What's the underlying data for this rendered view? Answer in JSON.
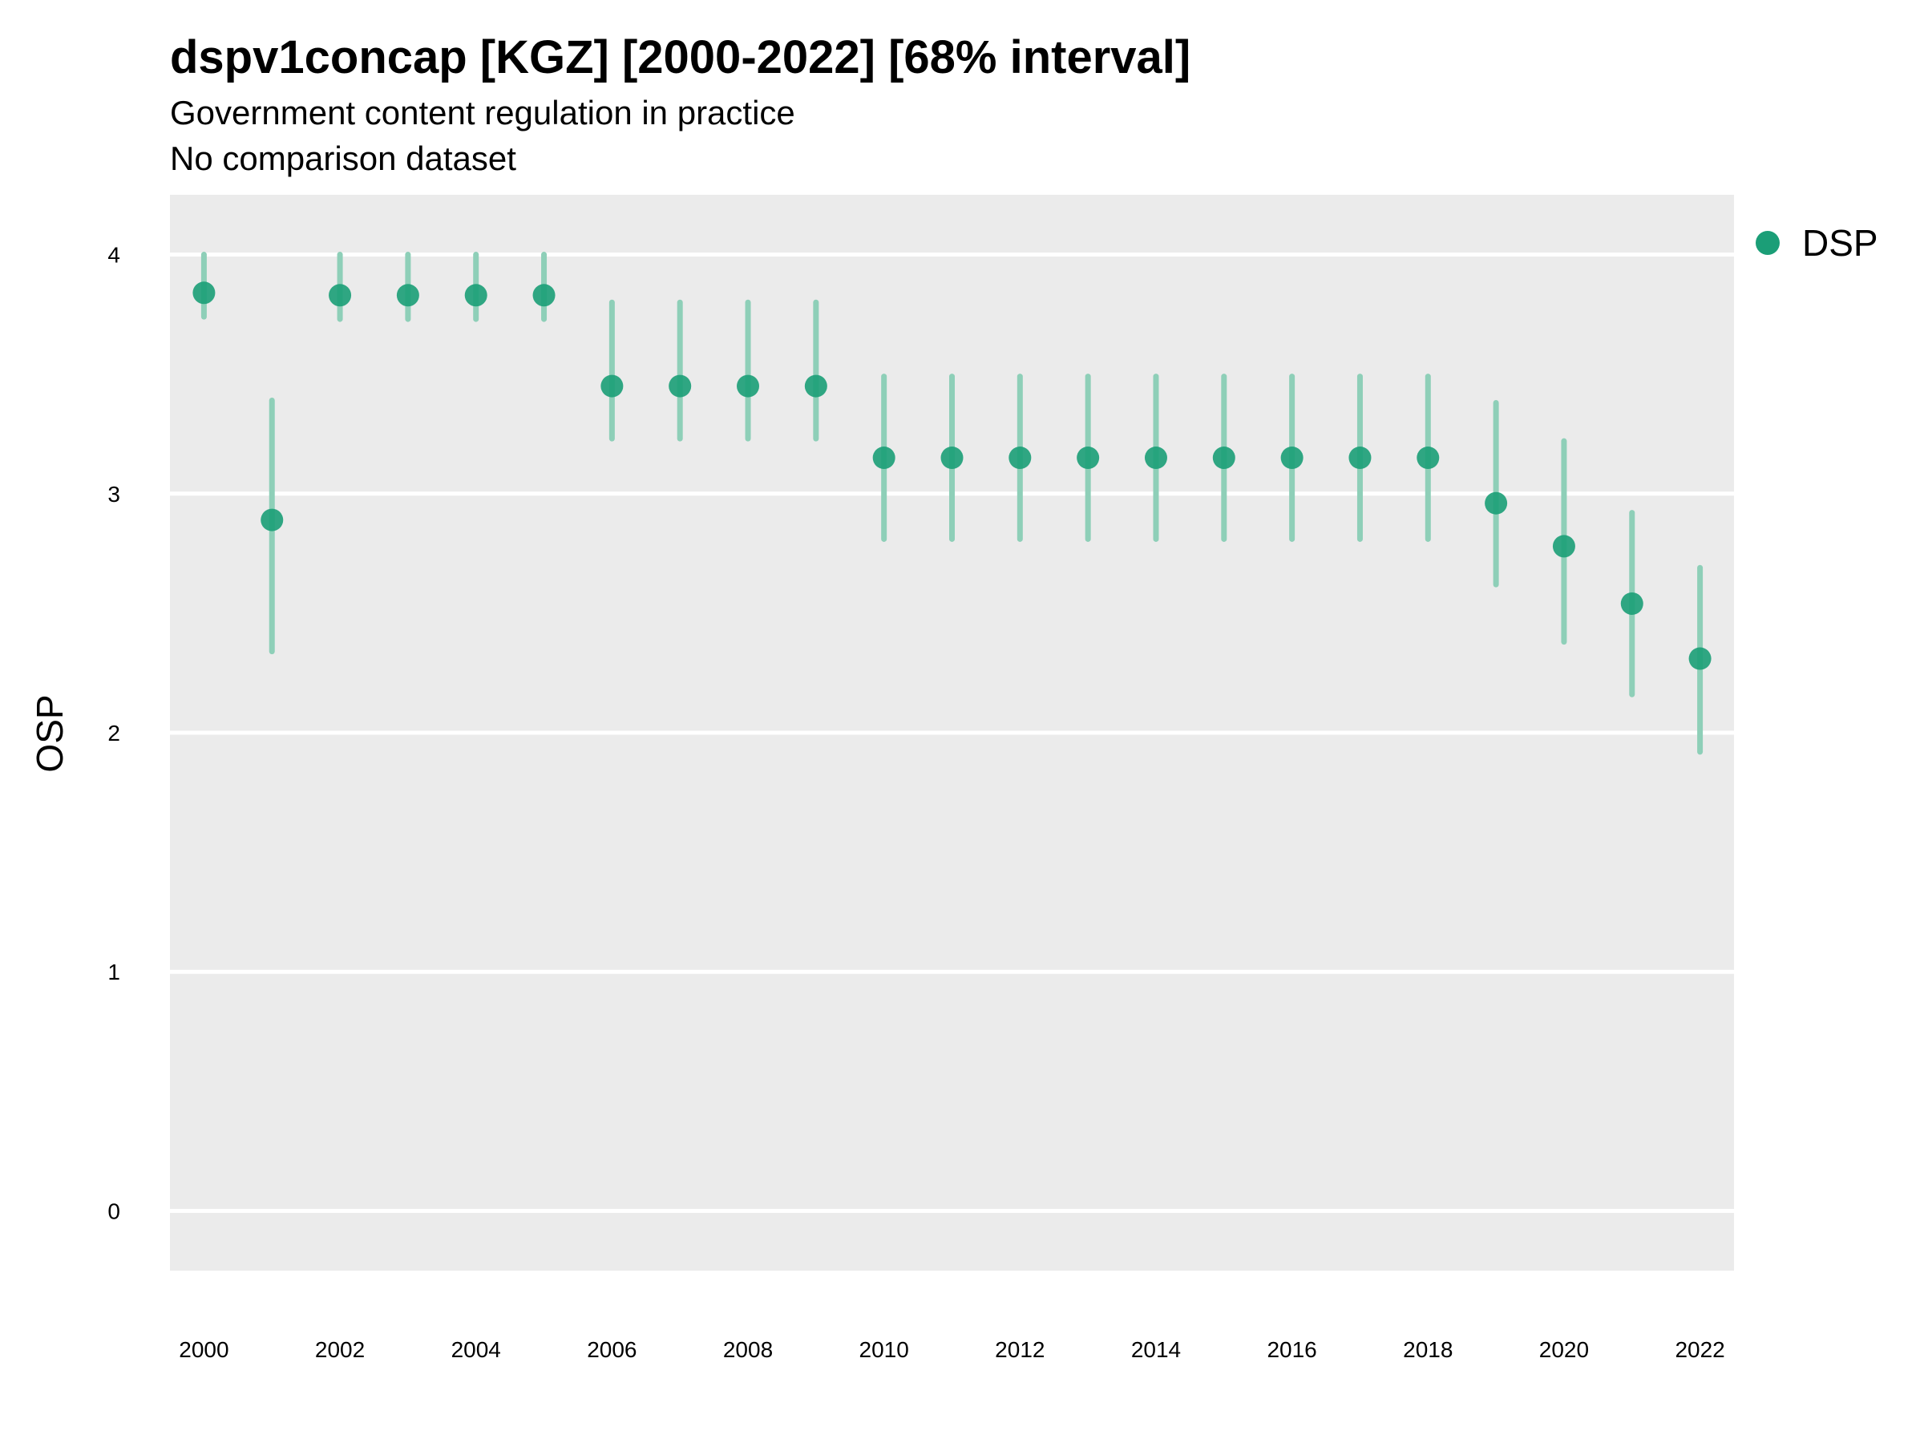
{
  "title": "dspv1concap [KGZ] [2000-2022] [68% interval]",
  "subtitle": "Government content regulation in practice",
  "subtitle2": "No comparison dataset",
  "colors": {
    "panel": "#ebebeb",
    "grid": "#ffffff",
    "point": "#1b9e77",
    "interval": "#8ecfb8"
  },
  "legend": {
    "label": "DSP",
    "position": "right"
  },
  "chart_data": {
    "type": "scatter",
    "title": "dspv1concap [KGZ] [2000-2022] [68% interval]",
    "ylabel": "OSP",
    "xlabel": "",
    "ylim": [
      -0.25,
      4.25
    ],
    "xlim": [
      1999.5,
      2022.5
    ],
    "grid": true,
    "yticks": [
      0,
      1,
      2,
      3,
      4
    ],
    "xticks": [
      2000,
      2002,
      2004,
      2006,
      2008,
      2010,
      2012,
      2014,
      2016,
      2018,
      2020,
      2022
    ],
    "series": [
      {
        "name": "DSP",
        "x": [
          2000,
          2001,
          2002,
          2003,
          2004,
          2005,
          2006,
          2007,
          2008,
          2009,
          2010,
          2011,
          2012,
          2013,
          2014,
          2015,
          2016,
          2017,
          2018,
          2019,
          2020,
          2021,
          2022
        ],
        "y": [
          3.84,
          2.89,
          3.83,
          3.83,
          3.83,
          3.83,
          3.45,
          3.45,
          3.45,
          3.45,
          3.15,
          3.15,
          3.15,
          3.15,
          3.15,
          3.15,
          3.15,
          3.15,
          3.15,
          2.96,
          2.78,
          2.54,
          2.31
        ],
        "lower": [
          3.74,
          2.34,
          3.73,
          3.73,
          3.73,
          3.73,
          3.23,
          3.23,
          3.23,
          3.23,
          2.81,
          2.81,
          2.81,
          2.81,
          2.81,
          2.81,
          2.81,
          2.81,
          2.81,
          2.62,
          2.38,
          2.16,
          1.92
        ],
        "upper": [
          4.0,
          3.39,
          4.0,
          4.0,
          4.0,
          4.0,
          3.8,
          3.8,
          3.8,
          3.8,
          3.49,
          3.49,
          3.49,
          3.49,
          3.49,
          3.49,
          3.49,
          3.49,
          3.49,
          3.38,
          3.22,
          2.92,
          2.69
        ]
      }
    ]
  }
}
